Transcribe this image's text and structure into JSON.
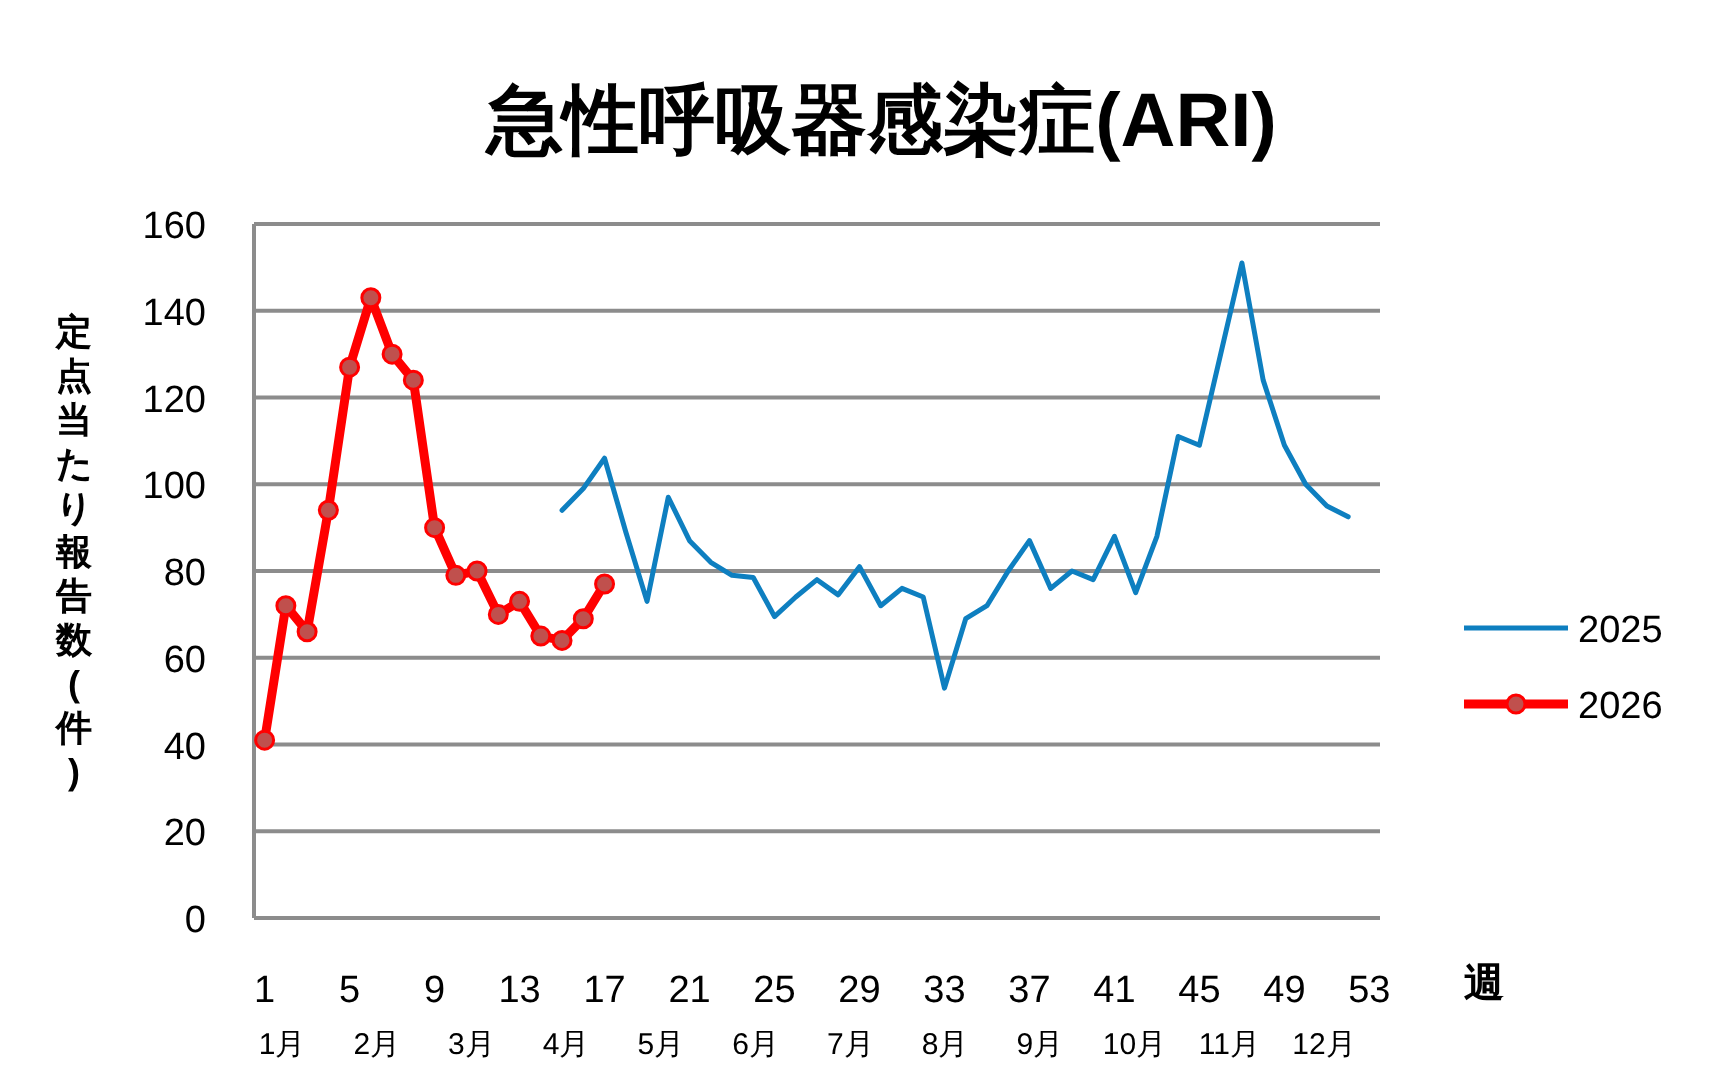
{
  "chart_data": {
    "type": "line",
    "title": "急性呼吸器感染症(ARI)",
    "xlabel": "週",
    "ylabel": "定点当たり報告数(件)",
    "xlim": [
      0.5,
      53.5
    ],
    "xticks": [
      1,
      5,
      9,
      13,
      17,
      21,
      25,
      29,
      33,
      37,
      41,
      45,
      49,
      53
    ],
    "annotations": [
      "1月",
      "2月",
      "3月",
      "4月",
      "5月",
      "6月",
      "7月",
      "8月",
      "9月",
      "10月",
      "11月",
      "12月"
    ],
    "ylim": [
      0,
      160
    ],
    "yticks": [
      0,
      20,
      40,
      60,
      80,
      100,
      120,
      140,
      160
    ],
    "grid": "y",
    "legend": "right",
    "series": [
      {
        "name": "2025",
        "color": "#0e7fc0",
        "marker": "none",
        "x": [
          15,
          16,
          17,
          18,
          19,
          20,
          21,
          22,
          23,
          24,
          25,
          26,
          27,
          28,
          29,
          30,
          31,
          32,
          33,
          34,
          35,
          36,
          37,
          38,
          39,
          40,
          41,
          42,
          43,
          44,
          45,
          46,
          47,
          48,
          49,
          50,
          51,
          52
        ],
        "values": [
          94,
          99,
          106,
          89,
          73,
          97,
          87,
          82,
          79,
          78.5,
          69.5,
          74,
          78,
          74.5,
          81,
          72,
          76,
          74,
          53,
          69,
          72,
          80,
          87,
          76,
          80,
          78,
          88,
          75,
          88,
          111,
          109,
          130,
          151,
          124,
          109,
          100,
          95,
          92.5
        ]
      },
      {
        "name": "2026",
        "color": "#ff0000",
        "marker": "circle",
        "x": [
          1,
          2,
          3,
          4,
          5,
          6,
          7,
          8,
          9,
          10,
          11,
          12,
          13,
          14,
          15,
          16,
          17
        ],
        "values": [
          41,
          72,
          66,
          94,
          127,
          143,
          130,
          124,
          90,
          79,
          80,
          70,
          73,
          65,
          64,
          69,
          77
        ]
      }
    ]
  }
}
